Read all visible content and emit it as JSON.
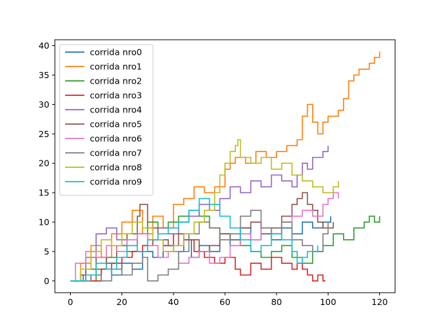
{
  "chart_data": {
    "type": "line",
    "step": "post",
    "xlim": [
      -6,
      126
    ],
    "ylim": [
      -2,
      41
    ],
    "x_ticks": [
      0,
      20,
      40,
      60,
      80,
      100,
      120
    ],
    "y_ticks": [
      0,
      5,
      10,
      15,
      20,
      25,
      30,
      35,
      40
    ],
    "grid": false,
    "legend_position": "upper-left",
    "series": [
      {
        "name": "corrida nro0",
        "color": "#1f77b4",
        "x": [
          0,
          5,
          8,
          12,
          16,
          20,
          24,
          28,
          32,
          36,
          40,
          44,
          47,
          50,
          54,
          58,
          62,
          66,
          70,
          74,
          78,
          82,
          86,
          90,
          94,
          98,
          101
        ],
        "y": [
          0,
          1,
          0,
          2,
          1,
          3,
          2,
          5,
          4,
          6,
          5,
          7,
          4,
          6,
          5,
          8,
          6,
          9,
          7,
          8,
          7,
          9,
          8,
          10,
          9,
          10,
          11
        ]
      },
      {
        "name": "corrida nro1",
        "color": "#ff7f0e",
        "x": [
          0,
          4,
          8,
          12,
          16,
          20,
          24,
          28,
          32,
          36,
          40,
          44,
          48,
          52,
          56,
          60,
          62,
          64,
          68,
          72,
          76,
          80,
          84,
          88,
          90,
          92,
          94,
          96,
          98,
          100,
          104,
          106,
          108,
          110,
          112,
          114,
          116,
          118,
          120
        ],
        "y": [
          0,
          3,
          6,
          4,
          8,
          10,
          12,
          8,
          11,
          9,
          13,
          14,
          16,
          15,
          16,
          19,
          20,
          21,
          20,
          22,
          21,
          22,
          23,
          24,
          28,
          30,
          27,
          25,
          27,
          28,
          29,
          31,
          34,
          35,
          36,
          36,
          37,
          38,
          39
        ]
      },
      {
        "name": "corrida nro2",
        "color": "#2ca02c",
        "x": [
          0,
          10,
          14,
          18,
          22,
          26,
          30,
          34,
          38,
          42,
          46,
          50,
          54,
          58,
          62,
          66,
          70,
          74,
          78,
          82,
          86,
          90,
          94,
          98,
          102,
          106,
          110,
          114,
          116,
          118,
          120
        ],
        "y": [
          0,
          2,
          4,
          6,
          5,
          8,
          10,
          9,
          10,
          11,
          12,
          11,
          9,
          8,
          7,
          6,
          5,
          4,
          5,
          6,
          4,
          3,
          5,
          6,
          8,
          7,
          9,
          10,
          11,
          10,
          11
        ]
      },
      {
        "name": "corrida nro3",
        "color": "#d62728",
        "x": [
          0,
          4,
          8,
          12,
          16,
          20,
          24,
          28,
          32,
          36,
          40,
          44,
          48,
          52,
          56,
          60,
          64,
          66,
          70,
          74,
          78,
          82,
          86,
          88,
          90,
          92,
          94,
          96,
          98,
          99
        ],
        "y": [
          0,
          1,
          0,
          2,
          3,
          4,
          5,
          6,
          7,
          6,
          8,
          7,
          5,
          4,
          3,
          4,
          2,
          1,
          3,
          2,
          4,
          3,
          2,
          3,
          2,
          1,
          0,
          1,
          0,
          0
        ]
      },
      {
        "name": "corrida nro4",
        "color": "#9467bd",
        "x": [
          0,
          6,
          10,
          14,
          18,
          22,
          26,
          30,
          34,
          38,
          42,
          46,
          50,
          54,
          58,
          62,
          66,
          70,
          74,
          78,
          82,
          86,
          88,
          90,
          92,
          94,
          96,
          98,
          100
        ],
        "y": [
          0,
          4,
          8,
          9,
          7,
          6,
          8,
          7,
          9,
          8,
          10,
          11,
          13,
          12,
          14,
          16,
          15,
          17,
          16,
          18,
          17,
          16,
          18,
          20,
          19,
          21,
          21,
          22,
          23
        ]
      },
      {
        "name": "corrida nro5",
        "color": "#8c564b",
        "x": [
          0,
          6,
          10,
          14,
          18,
          22,
          26,
          27,
          30,
          34,
          38,
          42,
          46,
          50,
          54,
          58,
          62,
          66,
          70,
          74,
          78,
          82,
          86,
          88,
          90,
          92,
          94,
          96,
          98,
          102
        ],
        "y": [
          0,
          2,
          4,
          3,
          6,
          8,
          11,
          13,
          9,
          7,
          6,
          8,
          7,
          5,
          6,
          8,
          7,
          9,
          10,
          8,
          9,
          11,
          13,
          14,
          15,
          13,
          12,
          10,
          9,
          10
        ]
      },
      {
        "name": "corrida nro6",
        "color": "#e377c2",
        "x": [
          0,
          2,
          6,
          10,
          14,
          18,
          22,
          26,
          30,
          34,
          38,
          42,
          46,
          50,
          54,
          58,
          62,
          66,
          70,
          74,
          78,
          82,
          86,
          90,
          94,
          98,
          100,
          102,
          104
        ],
        "y": [
          0,
          3,
          5,
          4,
          6,
          5,
          7,
          8,
          6,
          4,
          5,
          3,
          4,
          5,
          3,
          4,
          6,
          8,
          7,
          9,
          8,
          10,
          11,
          12,
          11,
          13,
          14,
          15,
          14
        ]
      },
      {
        "name": "corrida nro7",
        "color": "#7f7f7f",
        "x": [
          0,
          8,
          12,
          16,
          20,
          24,
          28,
          30,
          34,
          38,
          42,
          46,
          50,
          54,
          58,
          62,
          66,
          70,
          74,
          78,
          82,
          86,
          90,
          94,
          98,
          100
        ],
        "y": [
          0,
          1,
          0,
          2,
          1,
          3,
          4,
          0,
          1,
          2,
          5,
          8,
          10,
          9,
          7,
          8,
          11,
          12,
          9,
          8,
          10,
          7,
          6,
          5,
          8,
          10
        ]
      },
      {
        "name": "corrida nro8",
        "color": "#bcbd22",
        "x": [
          0,
          4,
          8,
          12,
          16,
          20,
          24,
          28,
          32,
          36,
          40,
          44,
          48,
          52,
          56,
          58,
          60,
          62,
          64,
          65,
          66,
          70,
          74,
          78,
          82,
          86,
          90,
          94,
          98,
          102,
          104
        ],
        "y": [
          0,
          2,
          5,
          7,
          6,
          8,
          10,
          9,
          7,
          5,
          6,
          8,
          10,
          12,
          15,
          18,
          20,
          22,
          23,
          24,
          21,
          20,
          21,
          19,
          20,
          18,
          17,
          16,
          15,
          16,
          17
        ]
      },
      {
        "name": "corrida nro9",
        "color": "#17becf",
        "x": [
          0,
          6,
          10,
          14,
          18,
          22,
          26,
          30,
          34,
          38,
          42,
          46,
          50,
          54,
          58,
          62,
          66,
          70,
          74,
          78,
          82,
          86,
          88,
          90,
          92,
          96
        ],
        "y": [
          0,
          1,
          3,
          2,
          4,
          6,
          5,
          7,
          8,
          9,
          10,
          12,
          14,
          13,
          11,
          9,
          7,
          5,
          6,
          8,
          7,
          5,
          3,
          4,
          5,
          6
        ]
      }
    ]
  }
}
